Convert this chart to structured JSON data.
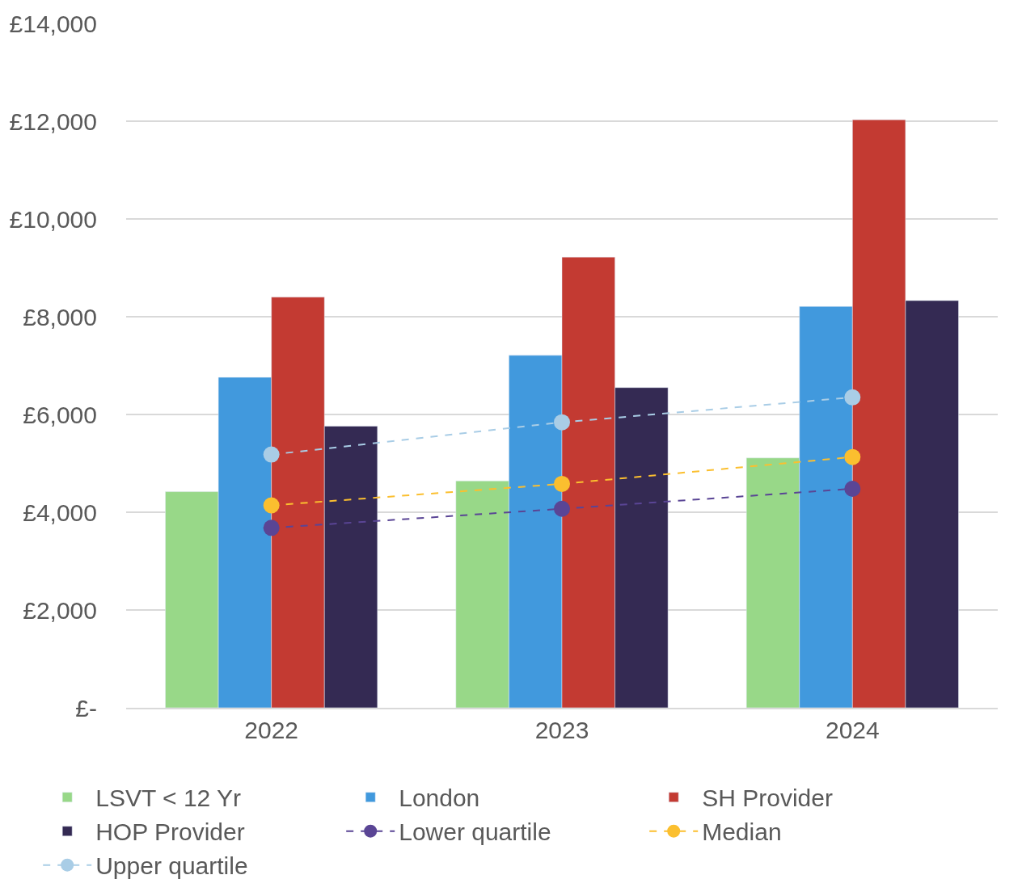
{
  "chart_data": {
    "type": "bar",
    "categories": [
      "2022",
      "2023",
      "2024"
    ],
    "series": [
      {
        "name": "LSVT < 12 Yr",
        "color": "#98d888",
        "values": [
          4420,
          4640,
          5110
        ]
      },
      {
        "name": "London",
        "color": "#4199dd",
        "values": [
          6760,
          7210,
          8210
        ]
      },
      {
        "name": "SH Provider",
        "color": "#c33a32",
        "values": [
          8400,
          9220,
          12030
        ]
      },
      {
        "name": "HOP Provider",
        "color": "#342a53",
        "values": [
          5760,
          6550,
          8330
        ]
      },
      {
        "name": "Lower quartile",
        "type": "line",
        "color": "#5a4595",
        "values": [
          3680,
          4070,
          4480
        ]
      },
      {
        "name": "Median",
        "type": "line",
        "color": "#fbbf2f",
        "values": [
          4140,
          4580,
          5130
        ]
      },
      {
        "name": "Upper quartile",
        "type": "line",
        "color": "#a9cde6",
        "values": [
          5180,
          5840,
          6350
        ]
      }
    ],
    "ylim": [
      0,
      14000
    ],
    "yticks": [
      {
        "value": 0,
        "label": "£-"
      },
      {
        "value": 2000,
        "label": "£2,000"
      },
      {
        "value": 4000,
        "label": "£4,000"
      },
      {
        "value": 6000,
        "label": "£6,000"
      },
      {
        "value": 8000,
        "label": "£8,000"
      },
      {
        "value": 10000,
        "label": "£10,000"
      },
      {
        "value": 12000,
        "label": "£12,000"
      },
      {
        "value": 14000,
        "label": "£14,000"
      }
    ],
    "grid": "y",
    "legend": "bottom",
    "marker": "circle",
    "line_style": "dashed"
  }
}
